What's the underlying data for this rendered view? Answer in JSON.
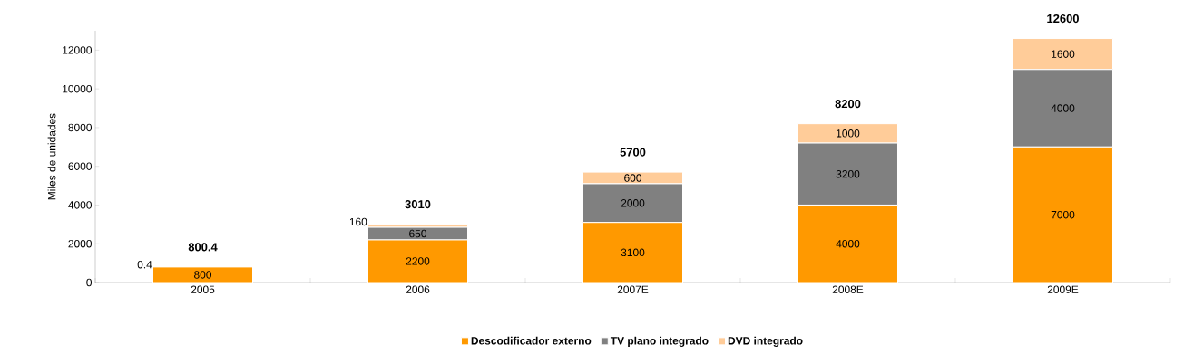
{
  "chart_data": {
    "type": "bar",
    "stacked": true,
    "ylabel": "Miles de unidades",
    "categories": [
      "2005",
      "2006",
      "2007E",
      "2008E",
      "2009E"
    ],
    "series": [
      {
        "name": "Descodificador externo",
        "color": "#ff9900",
        "values": [
          800,
          2200,
          3100,
          4000,
          7000
        ]
      },
      {
        "name": "TV plano integrado",
        "color": "#808080",
        "values": [
          0.4,
          650,
          2000,
          3200,
          4000
        ]
      },
      {
        "name": "DVD integrado",
        "color": "#ffcc99",
        "values": [
          null,
          160,
          600,
          1000,
          1600
        ]
      }
    ],
    "totals": [
      "800.4",
      "3010",
      "5700",
      "8200",
      "12600"
    ],
    "data_labels": true,
    "legend": "bottom",
    "grid": false,
    "ylim": [
      0,
      13000
    ],
    "yticks": [
      0,
      2000,
      4000,
      6000,
      8000,
      10000,
      12000
    ]
  }
}
